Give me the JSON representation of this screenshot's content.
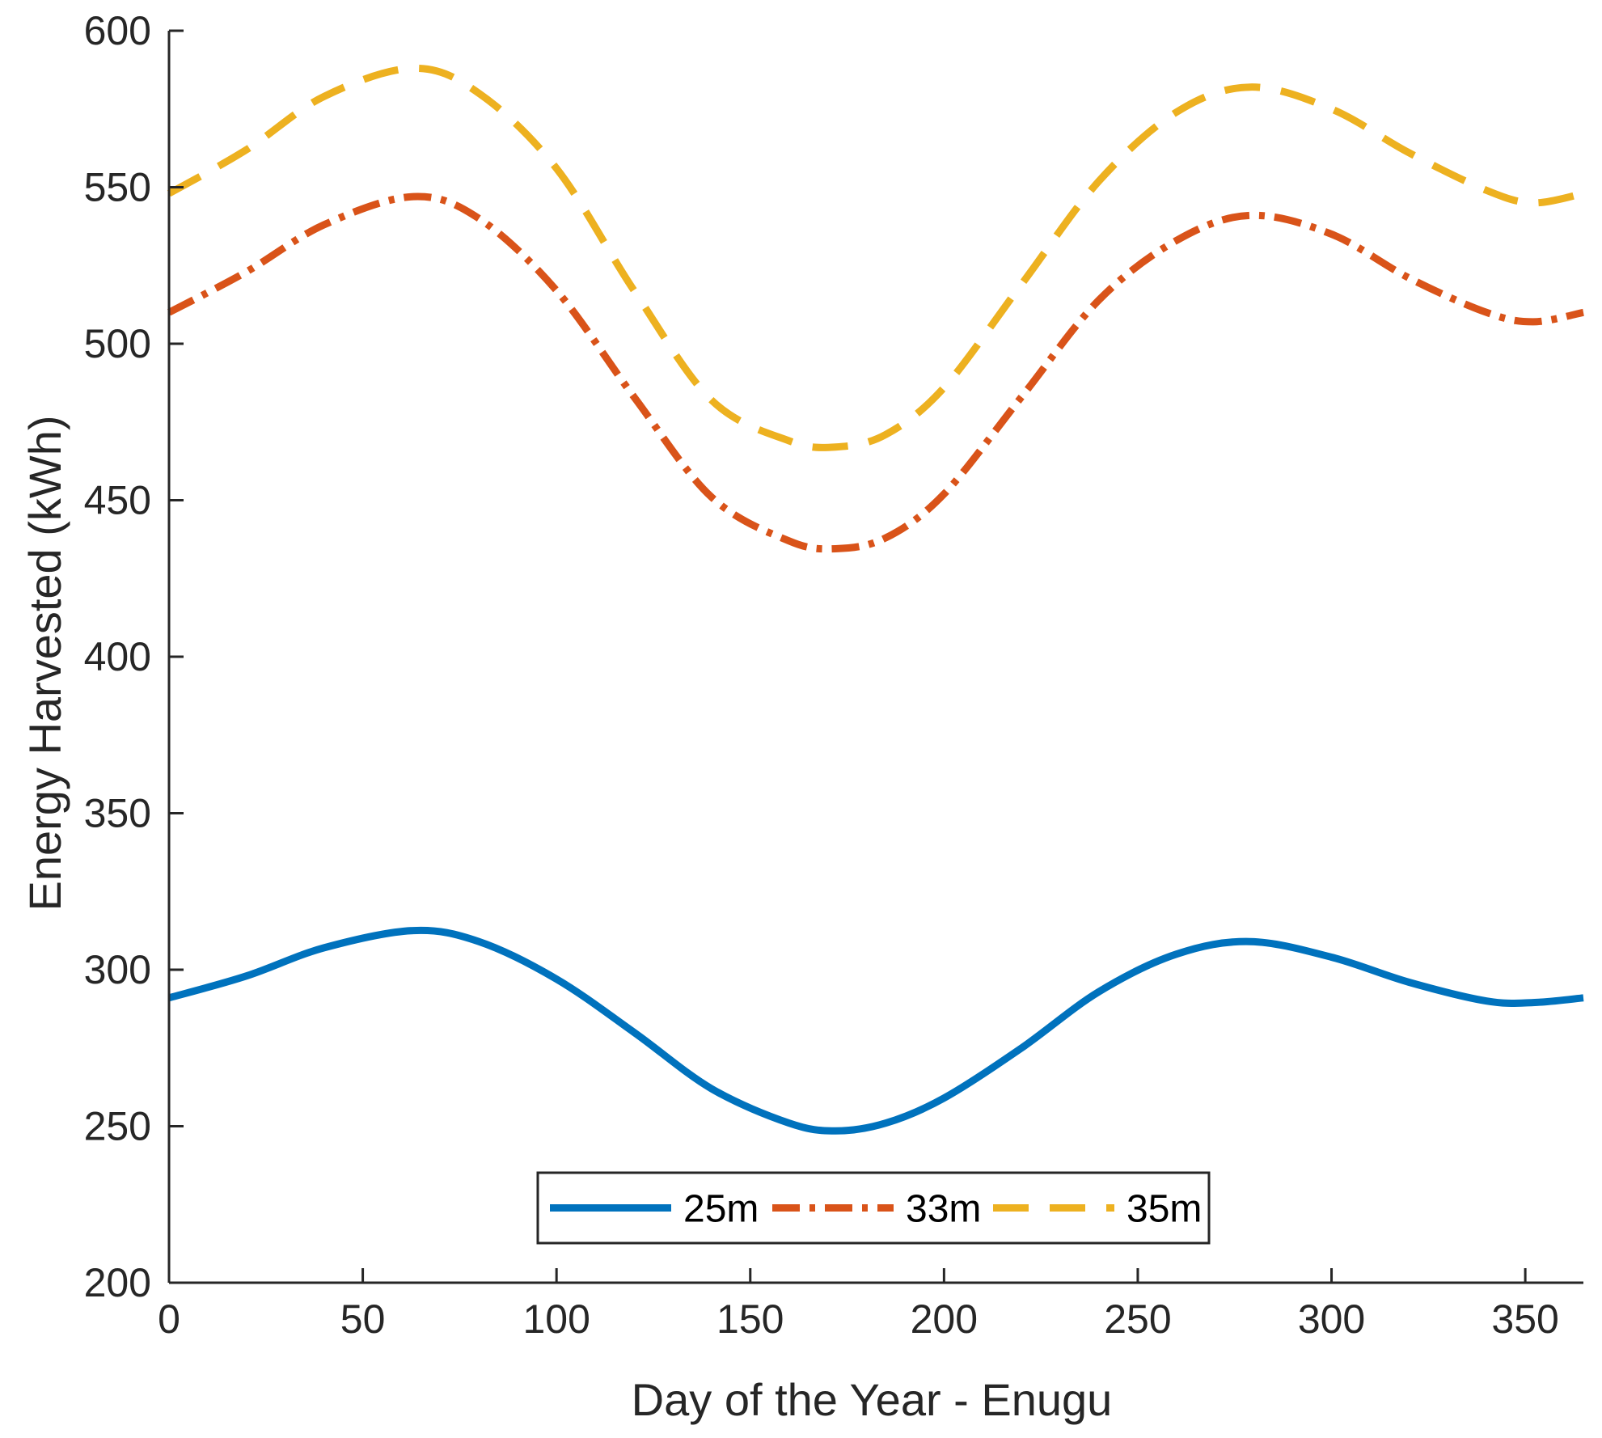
{
  "chart_data": {
    "type": "line",
    "title": "",
    "xlabel": "Day of the Year - Enugu",
    "ylabel": "Energy Harvested (kWh)",
    "xlim": [
      0,
      365
    ],
    "ylim": [
      200,
      600
    ],
    "xticks": [
      0,
      50,
      100,
      150,
      200,
      250,
      300,
      350
    ],
    "yticks": [
      200,
      250,
      300,
      350,
      400,
      450,
      500,
      550,
      600
    ],
    "grid": false,
    "legend_position": "bottom-center",
    "x": [
      0,
      20,
      40,
      63,
      80,
      100,
      120,
      140,
      160,
      172,
      185,
      200,
      220,
      240,
      260,
      279,
      300,
      320,
      340,
      352,
      365
    ],
    "series": [
      {
        "name": "25m",
        "color": "#0072BD",
        "style": "solid",
        "values": [
          291,
          298,
          307,
          312.5,
          309,
          297,
          280,
          262,
          251,
          248.5,
          251,
          259,
          275,
          293,
          305,
          309,
          304,
          296,
          290,
          289.5,
          291
        ]
      },
      {
        "name": "33m",
        "color": "#D95319",
        "style": "dashdot",
        "values": [
          510,
          523,
          538,
          547,
          540,
          517,
          483,
          451,
          437,
          434.5,
          438,
          452,
          483,
          514,
          533,
          541,
          535,
          521,
          510,
          507,
          510
        ]
      },
      {
        "name": "35m",
        "color": "#EDB120",
        "style": "dashed",
        "values": [
          548,
          562,
          579,
          588,
          580,
          556,
          517,
          482,
          469,
          467,
          471,
          486,
          519,
          552,
          574,
          582,
          575,
          561,
          549,
          545,
          548
        ]
      }
    ]
  }
}
